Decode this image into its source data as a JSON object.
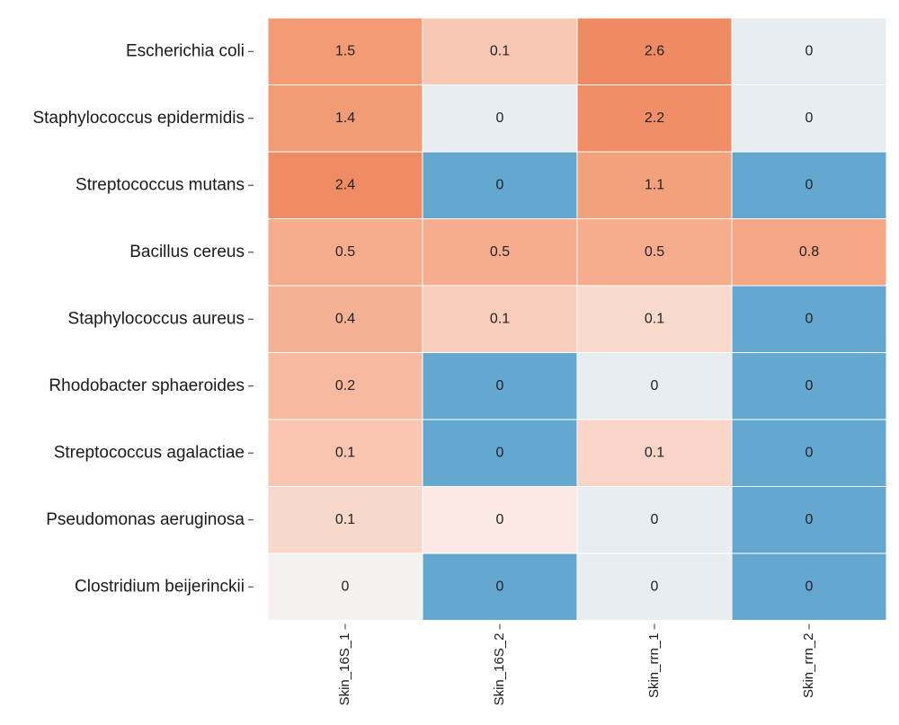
{
  "chart_data": {
    "type": "heatmap",
    "title": "",
    "xlabel": "",
    "ylabel": "",
    "rows": [
      "Escherichia coli",
      "Staphylococcus epidermidis",
      "Streptococcus mutans",
      "Bacillus cereus",
      "Staphylococcus aureus",
      "Rhodobacter sphaeroides",
      "Streptococcus agalactiae",
      "Pseudomonas aeruginosa",
      "Clostridium beijerinckii"
    ],
    "columns": [
      "Skin_16S_1",
      "Skin_16S_2",
      "Skin_rrn_1",
      "Skin_rrn_2"
    ],
    "values": [
      [
        1.5,
        0.1,
        2.6,
        0
      ],
      [
        1.4,
        0,
        2.2,
        0
      ],
      [
        2.4,
        0,
        1.1,
        0
      ],
      [
        0.5,
        0.5,
        0.5,
        0.8
      ],
      [
        0.4,
        0.1,
        0.1,
        0
      ],
      [
        0.2,
        0,
        0,
        0
      ],
      [
        0.1,
        0,
        0.1,
        0
      ],
      [
        0.1,
        0,
        0,
        0
      ],
      [
        0,
        0,
        0,
        0
      ]
    ],
    "cell_colors": [
      [
        "#f29b74",
        "#f8c8b4",
        "#ef8b62",
        "#e8edf2"
      ],
      [
        "#f29c76",
        "#e8edf2",
        "#f08f67",
        "#e8edf2"
      ],
      [
        "#ef8c63",
        "#64a8cf",
        "#f3a07d",
        "#64a8cf"
      ],
      [
        "#f5ad8d",
        "#f5ad8d",
        "#f5ad8d",
        "#f5a685"
      ],
      [
        "#f5b193",
        "#f8cdbb",
        "#f8d9cc",
        "#64a8cf"
      ],
      [
        "#f7b9a0",
        "#64a8cf",
        "#e8edf2",
        "#64a8cf"
      ],
      [
        "#f8c5b0",
        "#64a8cf",
        "#f8d5c6",
        "#64a8cf"
      ],
      [
        "#f8d8cb",
        "#fae9e4",
        "#e8edf2",
        "#64a8cf"
      ],
      [
        "#f4f1ef",
        "#64a8cf",
        "#e8edf2",
        "#64a8cf"
      ]
    ]
  }
}
